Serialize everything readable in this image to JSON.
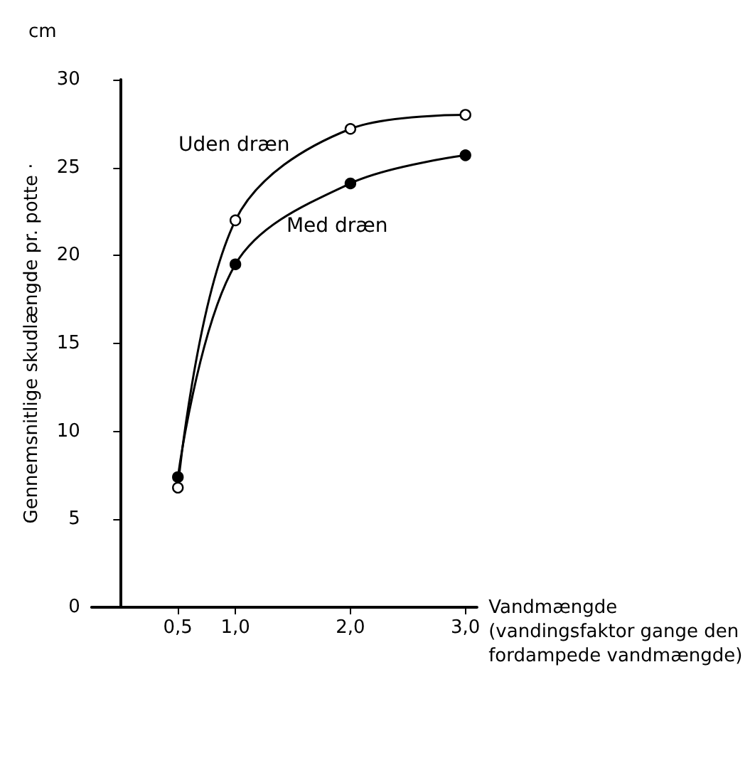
{
  "chart_data": {
    "type": "line",
    "xlabel": "Vandmængde\n(vandingsfaktor gange den\nfordampede vandmængde)",
    "ylabel": "Gennemsnitlige skudlængde pr. potte ·",
    "annotations": [
      "cm"
    ],
    "x": [
      0.5,
      1.0,
      2.0,
      3.0
    ],
    "series": [
      {
        "name": "Uden dræn",
        "color": "#000000",
        "values": [
          6.8,
          22.0,
          27.2,
          28.0
        ]
      },
      {
        "name": "Med dræn",
        "color": "#000000",
        "values": [
          7.4,
          19.5,
          24.1,
          25.7
        ]
      }
    ],
    "xlim": [
      -0.25,
      3.1
    ],
    "xticks": [
      {
        "value": 0.5,
        "label": "0,5"
      },
      {
        "value": 1.0,
        "label": "1,0"
      },
      {
        "value": 2.0,
        "label": "2,0"
      },
      {
        "value": 3.0,
        "label": "3,0"
      }
    ],
    "ylim": [
      0,
      30
    ],
    "yticks": [
      0,
      5,
      10,
      15,
      20,
      25,
      30
    ],
    "grid": false,
    "legend": false,
    "marker": "circle",
    "line_style": "solid"
  }
}
